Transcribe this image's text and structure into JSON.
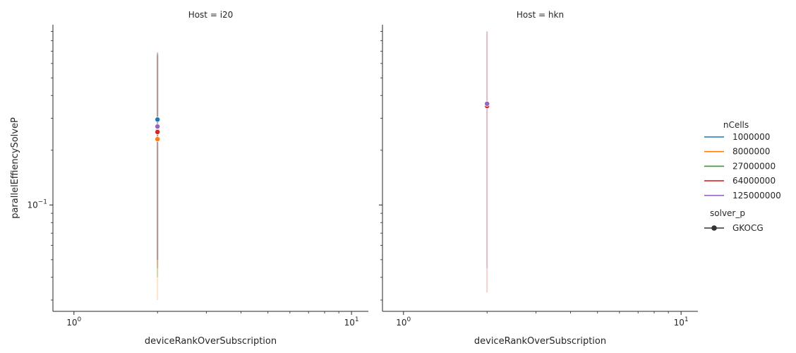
{
  "chart_data": {
    "type": "line",
    "facet_label_template": "Host = {host}",
    "facets": [
      {
        "host": "i20",
        "xlabel": "deviceRankOverSubscription",
        "ylabel": "parallelEffiencySolveP",
        "series": [
          {
            "name": "1000000",
            "x": [
              2
            ],
            "y": [
              0.295
            ],
            "ci": [
              [
                0.05,
                0.68
              ]
            ]
          },
          {
            "name": "8000000",
            "x": [
              2
            ],
            "y": [
              0.23
            ],
            "ci": [
              [
                0.03,
                0.66
              ]
            ]
          },
          {
            "name": "27000000",
            "x": [
              2
            ],
            "y": [
              0.255
            ],
            "ci": [
              [
                0.04,
                0.67
              ]
            ]
          },
          {
            "name": "64000000",
            "x": [
              2
            ],
            "y": [
              0.252
            ],
            "ci": [
              [
                0.045,
                0.69
              ]
            ]
          },
          {
            "name": "125000000",
            "x": [
              2
            ],
            "y": [
              0.27
            ],
            "ci": [
              [
                0.05,
                0.69
              ]
            ]
          }
        ]
      },
      {
        "host": "hkn",
        "xlabel": "deviceRankOverSubscription",
        "ylabel": "",
        "series": [
          {
            "name": "64000000",
            "x": [
              2
            ],
            "y": [
              0.35
            ],
            "ci": [
              [
                0.033,
                0.9
              ]
            ]
          },
          {
            "name": "125000000",
            "x": [
              2
            ],
            "y": [
              0.36
            ],
            "ci": [
              [
                0.045,
                0.9
              ]
            ]
          }
        ]
      }
    ],
    "x_scale": "log",
    "y_scale": "log",
    "xlim": [
      0.84,
      11.5
    ],
    "ylim": [
      0.026,
      0.98
    ],
    "x_major_ticks": [
      1,
      10
    ],
    "x_major_tick_labels": [
      "10^0",
      "10^1"
    ],
    "x_minor_ticks": [
      2,
      3,
      4,
      5,
      6,
      7,
      8,
      9
    ],
    "y_major_ticks": [
      0.1
    ],
    "y_major_tick_labels": [
      "10^−1"
    ],
    "y_minor_ticks": [
      0.03,
      0.04,
      0.05,
      0.06,
      0.07,
      0.08,
      0.09,
      0.2,
      0.3,
      0.4,
      0.5,
      0.6,
      0.7,
      0.8,
      0.9
    ],
    "grid": false,
    "legend": {
      "placement": "right",
      "hue_title": "nCells",
      "hue_entries": [
        {
          "label": "1000000",
          "color": "#1f77b4"
        },
        {
          "label": "8000000",
          "color": "#ff7f0e"
        },
        {
          "label": "27000000",
          "color": "#2ca02c"
        },
        {
          "label": "64000000",
          "color": "#d62728"
        },
        {
          "label": "125000000",
          "color": "#9467bd"
        }
      ],
      "style_title": "solver_p",
      "style_entries": [
        {
          "label": "GKOCG",
          "color": "#333333",
          "marker": "circle"
        }
      ]
    }
  }
}
